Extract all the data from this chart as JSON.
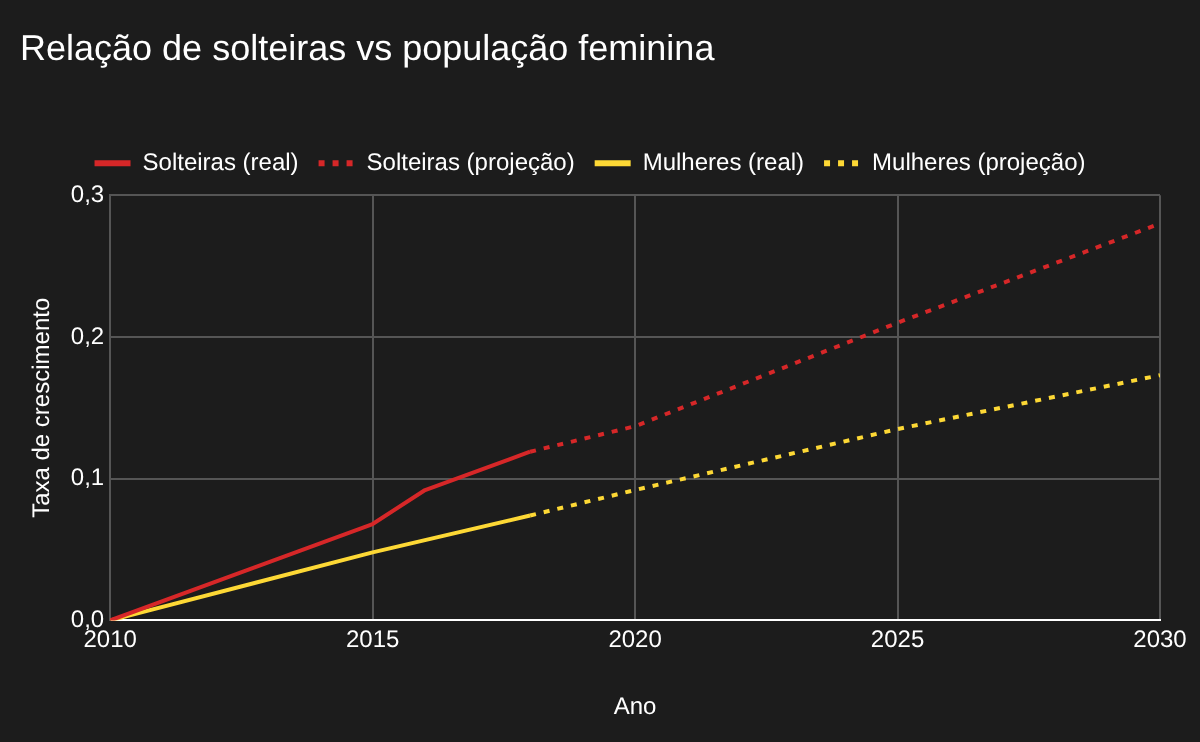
{
  "chart_data": {
    "type": "line",
    "title": "Relação de solteiras vs população feminina",
    "xlabel": "Ano",
    "ylabel": "Taxa de crescimento",
    "series": [
      {
        "name": "Solteiras (real)",
        "color": "#d62728",
        "line_style": "solid",
        "x": [
          2010,
          2015,
          2016,
          2018
        ],
        "values": [
          0,
          0.068,
          0.092,
          0.119
        ]
      },
      {
        "name": "Solteiras (projeção)",
        "color": "#d62728",
        "line_style": "dotted",
        "x": [
          2018,
          2020,
          2025,
          2030
        ],
        "values": [
          0.119,
          0.137,
          0.21,
          0.28
        ]
      },
      {
        "name": "Mulheres (real)",
        "color": "#fdd835",
        "line_style": "solid",
        "x": [
          2010,
          2015,
          2018
        ],
        "values": [
          0,
          0.048,
          0.074
        ]
      },
      {
        "name": "Mulheres (projeção)",
        "color": "#fdd835",
        "line_style": "dotted",
        "x": [
          2018,
          2020,
          2025,
          2030
        ],
        "values": [
          0.074,
          0.092,
          0.135,
          0.173
        ]
      }
    ],
    "xlim": [
      2010,
      2030
    ],
    "xticks": [
      2010,
      2015,
      2020,
      2025,
      2030
    ],
    "ylim": [
      0,
      0.3
    ],
    "yticks": [
      {
        "value": 0,
        "label": "0,0"
      },
      {
        "value": 0.1,
        "label": "0,1"
      },
      {
        "value": 0.2,
        "label": "0,2"
      },
      {
        "value": 0.3,
        "label": "0,3"
      }
    ],
    "grid": true,
    "legend": "top",
    "marker": "none"
  }
}
